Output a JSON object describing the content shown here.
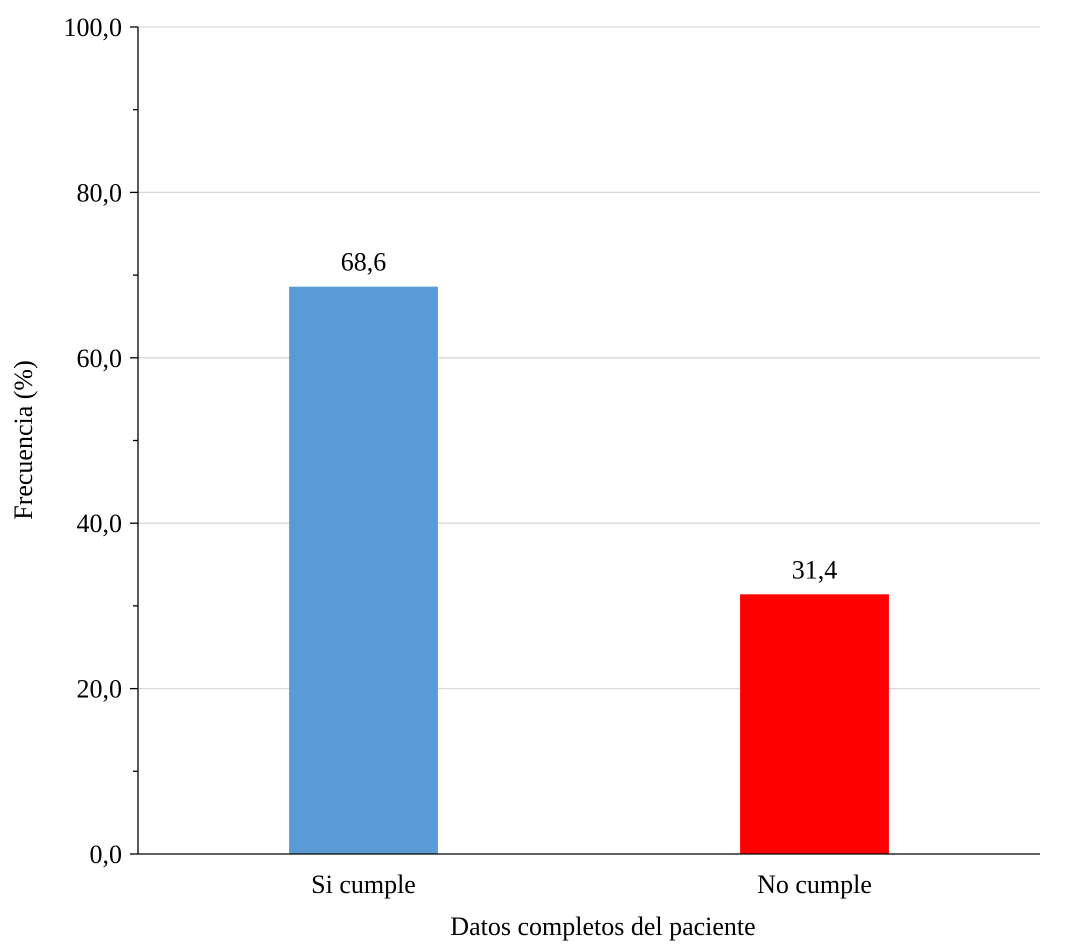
{
  "chart_data": {
    "type": "bar",
    "categories": [
      "Si cumple",
      "No cumple"
    ],
    "values": [
      68.6,
      31.4
    ],
    "data_labels": [
      "68,6",
      "31,4"
    ],
    "bar_colors": [
      "#5b9bd5",
      "#ff0000"
    ],
    "xlabel": "Datos completos del paciente",
    "ylabel": "Frecuencia (%)",
    "ylim": [
      0,
      100
    ],
    "yticks": [
      0,
      20,
      40,
      60,
      80,
      100
    ],
    "ytick_labels": [
      "0,0",
      "20,0",
      "40,0",
      "60,0",
      "80,0",
      "100,0"
    ],
    "minor_tick_step": 10,
    "grid": true,
    "grid_color": "#d9d9d9",
    "legend": "none"
  }
}
